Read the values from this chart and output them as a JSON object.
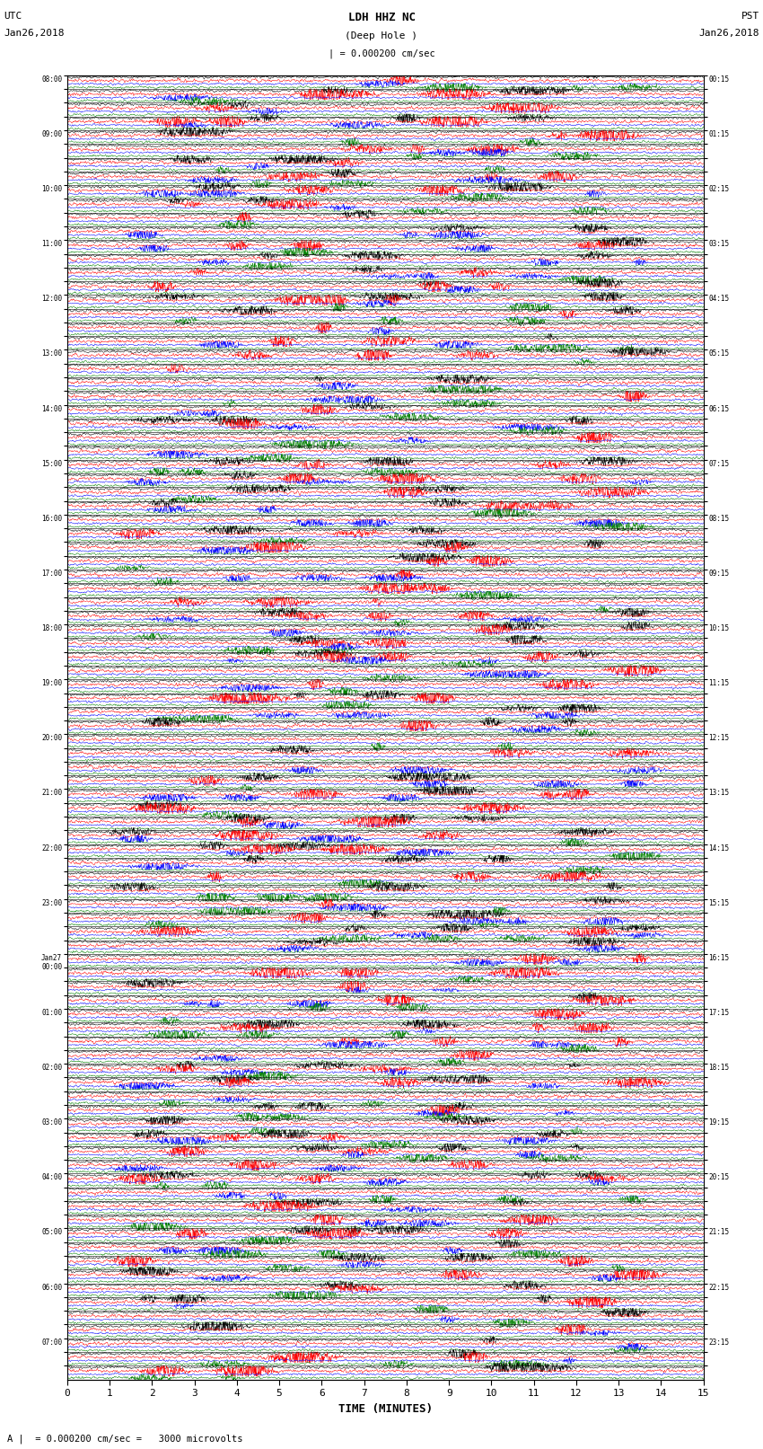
{
  "title_line1": "LDH HHZ NC",
  "title_line2": "(Deep Hole )",
  "title_scale": "| = 0.000200 cm/sec",
  "left_header": "UTC\nJan26,2018",
  "right_header": "PST\nJan26,2018",
  "footer_note": "A |  = 0.000200 cm/sec =   3000 microvolts",
  "xlabel": "TIME (MINUTES)",
  "x_ticks": [
    0,
    1,
    2,
    3,
    4,
    5,
    6,
    7,
    8,
    9,
    10,
    11,
    12,
    13,
    14,
    15
  ],
  "utc_labels": [
    "08:00",
    "",
    "",
    "",
    "09:00",
    "",
    "",
    "",
    "10:00",
    "",
    "",
    "",
    "11:00",
    "",
    "",
    "",
    "12:00",
    "",
    "",
    "",
    "13:00",
    "",
    "",
    "",
    "14:00",
    "",
    "",
    "",
    "15:00",
    "",
    "",
    "",
    "16:00",
    "",
    "",
    "",
    "17:00",
    "",
    "",
    "",
    "18:00",
    "",
    "",
    "",
    "19:00",
    "",
    "",
    "",
    "20:00",
    "",
    "",
    "",
    "21:00",
    "",
    "",
    "",
    "22:00",
    "",
    "",
    "",
    "23:00",
    "",
    "",
    "",
    "Jan27\n00:00",
    "",
    "",
    "",
    "01:00",
    "",
    "",
    "",
    "02:00",
    "",
    "",
    "",
    "03:00",
    "",
    "",
    "",
    "04:00",
    "",
    "",
    "",
    "05:00",
    "",
    "",
    "",
    "06:00",
    "",
    "",
    "",
    "07:00",
    "",
    ""
  ],
  "pst_labels": [
    "00:15",
    "",
    "",
    "",
    "01:15",
    "",
    "",
    "",
    "02:15",
    "",
    "",
    "",
    "03:15",
    "",
    "",
    "",
    "04:15",
    "",
    "",
    "",
    "05:15",
    "",
    "",
    "",
    "06:15",
    "",
    "",
    "",
    "07:15",
    "",
    "",
    "",
    "08:15",
    "",
    "",
    "",
    "09:15",
    "",
    "",
    "",
    "10:15",
    "",
    "",
    "",
    "11:15",
    "",
    "",
    "",
    "12:15",
    "",
    "",
    "",
    "13:15",
    "",
    "",
    "",
    "14:15",
    "",
    "",
    "",
    "15:15",
    "",
    "",
    "",
    "16:15",
    "",
    "",
    "",
    "17:15",
    "",
    "",
    "",
    "18:15",
    "",
    "",
    "",
    "19:15",
    "",
    "",
    "",
    "20:15",
    "",
    "",
    "",
    "21:15",
    "",
    "",
    "",
    "22:15",
    "",
    "",
    "",
    "23:15",
    "",
    ""
  ],
  "n_rows": 95,
  "traces_per_row": 4,
  "colors": [
    "black",
    "red",
    "blue",
    "green"
  ],
  "bg_color": "white",
  "trace_amplitude": 0.42,
  "fig_width": 8.5,
  "fig_height": 16.13,
  "seed": 42
}
